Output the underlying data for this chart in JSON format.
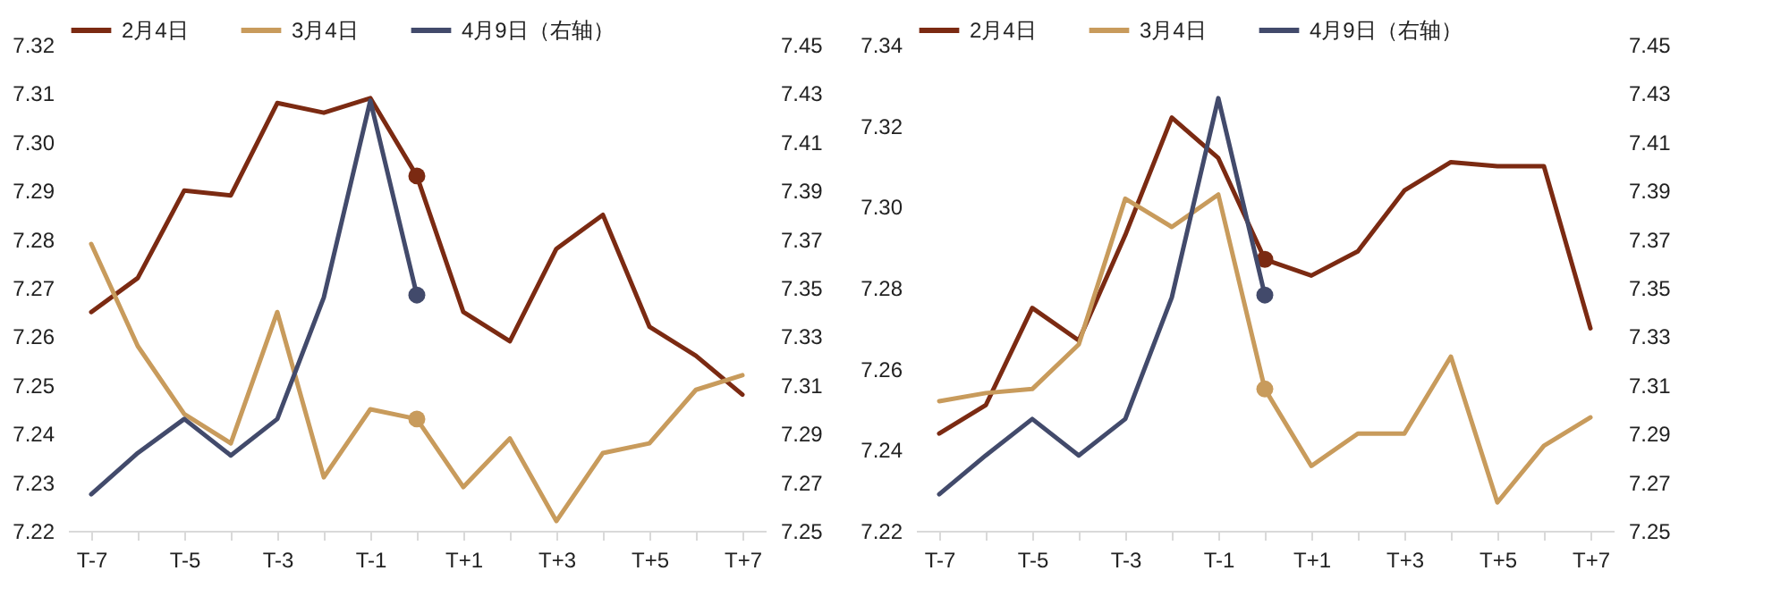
{
  "chart_data": [
    {
      "type": "line",
      "categories": [
        "T-7",
        null,
        "T-5",
        null,
        "T-3",
        null,
        "T-1",
        null,
        "T+1",
        null,
        "T+3",
        null,
        "T+5",
        null,
        "T+7"
      ],
      "ylim": [
        7.22,
        7.32
      ],
      "yticks": [
        7.22,
        7.23,
        7.24,
        7.25,
        7.26,
        7.27,
        7.28,
        7.29,
        {
          "value": 7.3,
          "label": "7.30"
        },
        7.31,
        7.32
      ],
      "y2lim": [
        7.25,
        7.45
      ],
      "y2ticks": [
        7.25,
        7.27,
        7.29,
        7.31,
        7.33,
        7.35,
        7.37,
        7.39,
        7.41,
        7.43,
        7.45
      ],
      "legend": "top",
      "series": [
        {
          "name": "2月4日",
          "color": "#7b2a12",
          "values": [
            7.265,
            7.272,
            7.29,
            7.289,
            7.308,
            7.306,
            7.309,
            7.293,
            7.265,
            7.259,
            7.278,
            7.285,
            7.262,
            7.256,
            7.248
          ]
        },
        {
          "name": "3月4日",
          "color": "#c89b5c",
          "values": [
            7.279,
            7.258,
            7.244,
            7.238,
            7.265,
            7.231,
            7.245,
            7.243,
            7.229,
            7.239,
            7.222,
            7.236,
            7.238,
            7.249,
            7.252
          ]
        },
        {
          "name": "4月9日（右轴）",
          "color": "#424a6b",
          "axis": "y2",
          "values": [
            7.265,
            7.282,
            7.296,
            7.281,
            7.296,
            7.346,
            7.427,
            7.347,
            null,
            null,
            null,
            null,
            null,
            null,
            null
          ]
        },
        {
          "type": "scatter",
          "color": "#7b2a12",
          "values": [
            null,
            null,
            null,
            null,
            null,
            null,
            null,
            7.293,
            null,
            null,
            null,
            null,
            null,
            null,
            null
          ]
        },
        {
          "type": "scatter",
          "color": "#c89b5c",
          "values": [
            null,
            null,
            null,
            null,
            null,
            null,
            null,
            7.243,
            null,
            null,
            null,
            null,
            null,
            null,
            null
          ]
        },
        {
          "type": "scatter",
          "color": "#424a6b",
          "axis": "y2",
          "values": [
            null,
            null,
            null,
            null,
            null,
            null,
            null,
            7.347,
            null,
            null,
            null,
            null,
            null,
            null,
            null
          ]
        }
      ]
    },
    {
      "type": "line",
      "categories": [
        "T-7",
        null,
        "T-5",
        null,
        "T-3",
        null,
        "T-1",
        null,
        "T+1",
        null,
        "T+3",
        null,
        "T+5",
        null,
        "T+7"
      ],
      "ylim": [
        7.22,
        7.34
      ],
      "yticks": [
        7.22,
        7.24,
        7.26,
        7.28,
        {
          "value": 7.3,
          "label": "7.30"
        },
        7.32,
        7.34
      ],
      "y2lim": [
        7.25,
        7.45
      ],
      "y2ticks": [
        7.25,
        7.27,
        7.29,
        7.31,
        7.33,
        7.35,
        7.37,
        7.39,
        7.41,
        7.43,
        7.45
      ],
      "legend": "top",
      "series": [
        {
          "name": "2月4日",
          "color": "#7b2a12",
          "values": [
            7.244,
            7.251,
            7.275,
            7.267,
            7.293,
            7.322,
            7.312,
            7.287,
            7.283,
            7.289,
            7.304,
            7.311,
            7.31,
            7.31,
            7.27
          ]
        },
        {
          "name": "3月4日",
          "color": "#c89b5c",
          "values": [
            7.252,
            7.254,
            7.255,
            7.266,
            7.302,
            7.295,
            7.303,
            7.255,
            7.236,
            7.244,
            7.244,
            7.263,
            7.227,
            7.241,
            7.248
          ]
        },
        {
          "name": "4月9日（右轴）",
          "color": "#424a6b",
          "axis": "y2",
          "values": [
            7.265,
            7.281,
            7.296,
            7.281,
            7.296,
            7.346,
            7.428,
            7.347,
            null,
            null,
            null,
            null,
            null,
            null,
            null
          ]
        },
        {
          "type": "scatter",
          "color": "#7b2a12",
          "values": [
            null,
            null,
            null,
            null,
            null,
            null,
            null,
            7.287,
            null,
            null,
            null,
            null,
            null,
            null,
            null
          ]
        },
        {
          "type": "scatter",
          "color": "#c89b5c",
          "values": [
            null,
            null,
            null,
            null,
            null,
            null,
            null,
            7.255,
            null,
            null,
            null,
            null,
            null,
            null,
            null
          ]
        },
        {
          "type": "scatter",
          "color": "#424a6b",
          "axis": "y2",
          "values": [
            null,
            null,
            null,
            null,
            null,
            null,
            null,
            7.347,
            null,
            null,
            null,
            null,
            null,
            null,
            null
          ]
        }
      ]
    }
  ]
}
